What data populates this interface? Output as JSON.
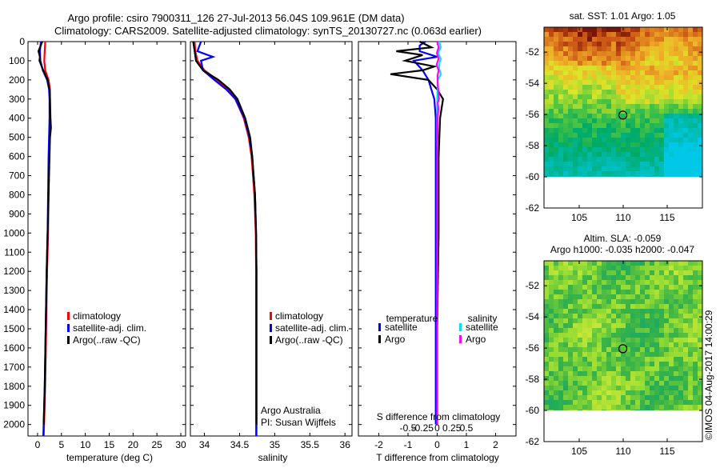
{
  "header": {
    "line1": "Argo profile: csiro 7900311_126 27-Jul-2013 56.04S 109.961E (DM data)",
    "line2": "Climatology: CARS2009. Satellite-adjusted climatology: synTS_20130727.nc (0.063d earlier)"
  },
  "colors": {
    "climatology": "#ff0000",
    "satellite_adj": "#0000ff",
    "argo": "#000000",
    "sal_satellite": "#00e5ee",
    "sal_argo": "#ff00ff"
  },
  "depth_axis": {
    "ticks": [
      "0",
      "100",
      "200",
      "300",
      "400",
      "500",
      "600",
      "700",
      "800",
      "900",
      "1000",
      "1100",
      "1200",
      "1300",
      "1400",
      "1500",
      "1600",
      "1700",
      "1800",
      "1900",
      "2000"
    ],
    "ylim": [
      0,
      2060
    ]
  },
  "chart_data": [
    {
      "type": "line",
      "id": "temperature",
      "xlabel": "temperature (deg C)",
      "xlim": [
        -2,
        31
      ],
      "xticks": [
        "0",
        "5",
        "10",
        "15",
        "20",
        "25",
        "30"
      ],
      "xtick_values": [
        0,
        5,
        10,
        15,
        20,
        25,
        30
      ],
      "legend": [
        "climatology",
        "satellite-adj. clim.",
        "Argo(..raw -QC)"
      ],
      "series": [
        {
          "name": "climatology",
          "depth": [
            0,
            50,
            100,
            150,
            200,
            250,
            300,
            400,
            500,
            600,
            800,
            1000,
            1200,
            1500,
            1800,
            2060
          ],
          "values": [
            1.6,
            1.5,
            1.4,
            1.6,
            2.3,
            2.6,
            2.6,
            2.6,
            2.5,
            2.4,
            2.3,
            2.2,
            2.0,
            1.8,
            1.6,
            1.3
          ]
        },
        {
          "name": "satellite-adj. clim.",
          "depth": [
            0,
            50,
            100,
            150,
            200,
            250,
            300,
            400,
            500,
            600,
            800,
            1000,
            1200,
            1500,
            1800,
            2060
          ],
          "values": [
            0.7,
            0.5,
            0.6,
            1.1,
            2.0,
            2.4,
            2.5,
            2.5,
            2.4,
            2.3,
            2.2,
            2.1,
            1.9,
            1.7,
            1.5,
            1.2
          ]
        },
        {
          "name": "Argo(..raw -QC)",
          "depth": [
            0,
            50,
            80,
            100,
            150,
            200,
            250,
            300,
            400,
            450,
            500,
            600,
            700,
            800,
            900,
            1000,
            1200,
            1500,
            1800,
            2000
          ],
          "values": [
            1.0,
            0.2,
            0.5,
            0.4,
            1.2,
            2.1,
            2.5,
            2.6,
            2.7,
            2.8,
            2.6,
            2.5,
            2.4,
            2.3,
            2.2,
            2.1,
            1.9,
            1.7,
            1.5,
            1.3
          ]
        }
      ]
    },
    {
      "type": "line",
      "id": "salinity",
      "xlabel": "salinity",
      "xlim": [
        33.8,
        36.1
      ],
      "xticks": [
        "34",
        "34.5",
        "35",
        "35.5",
        "36"
      ],
      "xtick_values": [
        34,
        34.5,
        35,
        35.5,
        36
      ],
      "legend": [
        "climatology",
        "satellite-adj. clim.",
        "Argo(..raw -QC)"
      ],
      "annotation": [
        "Argo Australia",
        "PI: Susan Wijffels"
      ],
      "series": [
        {
          "name": "climatology",
          "depth": [
            0,
            50,
            100,
            150,
            200,
            250,
            300,
            400,
            500,
            600,
            700,
            800,
            1000,
            1200,
            1500,
            1800,
            2060
          ],
          "values": [
            33.86,
            33.87,
            33.9,
            34.0,
            34.18,
            34.33,
            34.44,
            34.56,
            34.63,
            34.67,
            34.69,
            34.71,
            34.73,
            34.735,
            34.735,
            34.735,
            34.735
          ]
        },
        {
          "name": "satellite-adj. clim.",
          "depth": [
            0,
            50,
            80,
            100,
            150,
            200,
            250,
            300,
            400,
            500,
            600,
            700,
            800,
            1000,
            1200,
            1500,
            1800,
            2060
          ],
          "values": [
            33.95,
            33.9,
            34.12,
            33.95,
            33.98,
            34.14,
            34.31,
            34.44,
            34.57,
            34.64,
            34.68,
            34.7,
            34.72,
            34.735,
            34.74,
            34.74,
            34.74,
            34.74
          ]
        },
        {
          "name": "Argo(..raw -QC)",
          "depth": [
            0,
            50,
            100,
            150,
            200,
            250,
            300,
            400,
            500,
            600,
            700,
            800,
            1000,
            1200,
            1500,
            1800,
            2000
          ],
          "values": [
            33.84,
            33.86,
            33.88,
            33.98,
            34.2,
            34.36,
            34.47,
            34.58,
            34.65,
            34.68,
            34.7,
            34.72,
            34.735,
            34.74,
            34.74,
            34.74,
            34.74
          ]
        }
      ]
    },
    {
      "type": "line",
      "id": "difference",
      "xlabel": "T difference from climatology",
      "xlim": [
        -2.7,
        2.7
      ],
      "xticks": [
        "-2",
        "-1",
        "0",
        "1",
        "2"
      ],
      "xtick_values": [
        -2,
        -1,
        0,
        1,
        2
      ],
      "top_label": "S difference from climatology",
      "s_ticks": [
        "-0.5",
        "-0.25",
        "0",
        "0.25",
        "0.5"
      ],
      "legend_titles": [
        "temperature",
        "salinity"
      ],
      "legend": [
        "satellite",
        "Argo",
        "satellite",
        "Argo"
      ],
      "series": [
        {
          "name": "temperature satellite",
          "depth": [
            0,
            20,
            50,
            80,
            100,
            150,
            200,
            250,
            300,
            400,
            600,
            800,
            1000,
            1500,
            2000
          ],
          "values": [
            -0.4,
            -0.6,
            -0.6,
            0.0,
            -0.8,
            -0.5,
            -0.3,
            -0.2,
            -0.1,
            -0.05,
            -0.05,
            -0.05,
            -0.05,
            -0.05,
            -0.05
          ]
        },
        {
          "name": "temperature Argo",
          "depth": [
            0,
            30,
            50,
            70,
            100,
            130,
            150,
            170,
            200,
            250,
            300,
            400,
            600,
            800,
            1000,
            1500,
            2000
          ],
          "values": [
            -0.6,
            -0.2,
            -1.4,
            -0.5,
            -1.1,
            -0.1,
            -0.5,
            -1.6,
            -0.3,
            0.0,
            0.2,
            0.1,
            0.05,
            0.05,
            0.05,
            0.0,
            0.0
          ]
        },
        {
          "name": "salinity satellite",
          "depth": [
            0,
            30,
            60,
            90,
            110,
            140,
            170,
            200,
            250,
            300,
            400,
            600,
            800,
            1000,
            1500,
            2000
          ],
          "values": [
            0.07,
            0.12,
            0.03,
            0.12,
            0.08,
            0.06,
            0.13,
            0.02,
            0.01,
            0.0,
            0.0,
            0.0,
            0.0,
            0.0,
            0.0,
            0.0
          ]
        },
        {
          "name": "salinity Argo",
          "depth": [
            0,
            30,
            60,
            90,
            120,
            150,
            180,
            220,
            300,
            320,
            350,
            400,
            500,
            600,
            800,
            1000,
            1500,
            2000
          ],
          "values": [
            0.0,
            0.05,
            -0.01,
            0.05,
            -0.02,
            0.05,
            0.01,
            0.02,
            0.06,
            0.02,
            0.04,
            0.02,
            0.01,
            0.0,
            0.0,
            0.0,
            0.0,
            0.0
          ]
        }
      ]
    },
    {
      "type": "heatmap",
      "id": "sst_map",
      "title": "sat. SST: 1.01  Argo: 1.05",
      "xticks": [
        "105",
        "110",
        "115"
      ],
      "xtick_values": [
        105,
        110,
        115
      ],
      "yticks": [
        "-52",
        "-54",
        "-56",
        "-58",
        "-60",
        "-62"
      ],
      "ytick_values": [
        -52,
        -54,
        -56,
        -58,
        -60,
        -62
      ],
      "xlim": [
        101,
        119
      ],
      "ylim": [
        -62,
        -50.4
      ],
      "data_ylim": [
        -60,
        -50.4
      ],
      "marker": [
        109.961,
        -56.04
      ]
    },
    {
      "type": "heatmap",
      "id": "sla_map",
      "title": "Altim. SLA: -0.059",
      "subtitle": "Argo h1000: -0.035 h2000: -0.047",
      "xticks": [
        "105",
        "110",
        "115"
      ],
      "xtick_values": [
        105,
        110,
        115
      ],
      "yticks": [
        "-52",
        "-54",
        "-56",
        "-58",
        "-60",
        "-62"
      ],
      "ytick_values": [
        -52,
        -54,
        -56,
        -58,
        -60,
        -62
      ],
      "xlim": [
        101,
        119
      ],
      "ylim": [
        -62,
        -50.4
      ],
      "data_ylim": [
        -60,
        -50.4
      ],
      "marker": [
        109.961,
        -56.04
      ]
    }
  ],
  "footer": {
    "credit": "©IMOS 04-Aug-2017 14:00:29"
  }
}
